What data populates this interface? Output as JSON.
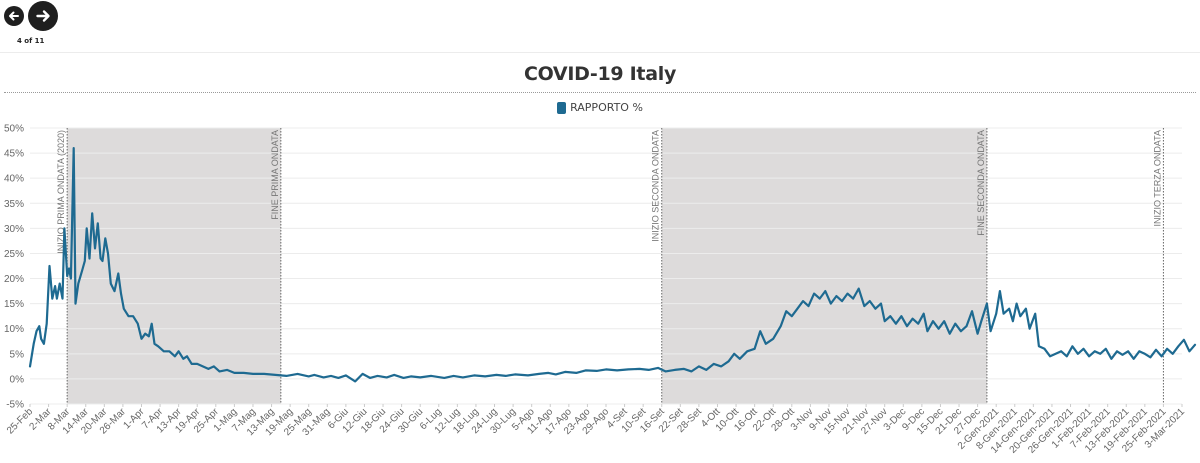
{
  "nav": {
    "prev_icon": "arrow-left-icon",
    "next_icon": "arrow-right-icon",
    "pager_text": "4 of 11"
  },
  "colors": {
    "line": "#1e6a91",
    "band": "#dddbdb",
    "grid": "#ececec",
    "text": "#666666"
  },
  "chart_data": {
    "type": "line",
    "title": "COVID-19 Italy",
    "legend": [
      "RAPPORTO %"
    ],
    "legend_position": "top-center",
    "ylim": [
      -5,
      50
    ],
    "yticks": [
      -5,
      0,
      5,
      10,
      15,
      20,
      25,
      30,
      35,
      40,
      45,
      50
    ],
    "y_tick_format": "{v}%",
    "grid": true,
    "x_tick_labels": [
      "25-Feb",
      "2-Mar",
      "8-Mar",
      "14-Mar",
      "20-Mar",
      "26-Mar",
      "1-Apr",
      "7-Apr",
      "13-Apr",
      "19-Apr",
      "25-Apr",
      "1-Mag",
      "7-Mag",
      "13-Mag",
      "19-Mag",
      "25-Mag",
      "31-Mag",
      "6-Giu",
      "12-Giu",
      "18-Giu",
      "24-Giu",
      "30-Giu",
      "6-Lug",
      "12-Lug",
      "18-Lug",
      "24-Lug",
      "30-Lug",
      "5-Ago",
      "11-Ago",
      "17-Ago",
      "23-Ago",
      "29-Ago",
      "4-Set",
      "10-Set",
      "16-Set",
      "22-Set",
      "28-Set",
      "4-Ott",
      "10-Ott",
      "16-Ott",
      "22-Ott",
      "28-Ott",
      "3-Nov",
      "9-Nov",
      "15-Nov",
      "21-Nov",
      "27-Nov",
      "3-Dec",
      "9-Dec",
      "15-Dec",
      "21-Dec",
      "27-Dec",
      "2-Gen-2021",
      "8-Gen-2021",
      "14-Gen-2021",
      "20-Gen-2021",
      "26-Gen-2021",
      "1-Feb-2021",
      "7-Feb-2021",
      "13-Feb-2021",
      "19-Feb-2021",
      "25-Feb-2021",
      "3-Mar-2021"
    ],
    "shaded_ranges": [
      {
        "from_tick": 2,
        "to_tick": 13.5
      },
      {
        "from_tick": 34,
        "to_tick": 51.5
      }
    ],
    "annotations": [
      {
        "at_tick": 2,
        "text": "INIZIO PRIMA ONDATA (2020)"
      },
      {
        "at_tick": 13.5,
        "text": "FINE PRIMA ONDATA"
      },
      {
        "at_tick": 34,
        "text": "INIZIO SECONDA ONDATA"
      },
      {
        "at_tick": 51.5,
        "text": "FINE SECONDA ONDATA"
      },
      {
        "at_tick": 61,
        "text": "INIZIO TERZA ONDATA"
      }
    ],
    "series": [
      {
        "name": "RAPPORTO %",
        "points": [
          [
            0,
            2.5
          ],
          [
            0.2,
            7
          ],
          [
            0.35,
            9.5
          ],
          [
            0.5,
            10.5
          ],
          [
            0.6,
            8
          ],
          [
            0.75,
            7
          ],
          [
            0.9,
            11
          ],
          [
            1.05,
            22.5
          ],
          [
            1.2,
            16
          ],
          [
            1.35,
            18.5
          ],
          [
            1.45,
            16
          ],
          [
            1.6,
            19
          ],
          [
            1.75,
            16
          ],
          [
            1.85,
            30
          ],
          [
            2.0,
            20.5
          ],
          [
            2.1,
            22
          ],
          [
            2.2,
            20
          ],
          [
            2.35,
            46
          ],
          [
            2.45,
            15
          ],
          [
            2.6,
            19
          ],
          [
            2.8,
            21.5
          ],
          [
            2.95,
            23.5
          ],
          [
            3.05,
            30
          ],
          [
            3.2,
            24
          ],
          [
            3.35,
            33
          ],
          [
            3.5,
            26
          ],
          [
            3.65,
            31
          ],
          [
            3.8,
            24
          ],
          [
            3.9,
            23.5
          ],
          [
            4.05,
            28
          ],
          [
            4.2,
            25
          ],
          [
            4.35,
            19
          ],
          [
            4.55,
            17.5
          ],
          [
            4.75,
            21
          ],
          [
            4.9,
            17
          ],
          [
            5.05,
            14
          ],
          [
            5.3,
            12.5
          ],
          [
            5.55,
            12.5
          ],
          [
            5.8,
            11
          ],
          [
            6.0,
            8
          ],
          [
            6.2,
            9
          ],
          [
            6.4,
            8.5
          ],
          [
            6.55,
            11
          ],
          [
            6.7,
            7
          ],
          [
            6.9,
            6.5
          ],
          [
            7.2,
            5.5
          ],
          [
            7.5,
            5.5
          ],
          [
            7.8,
            4.5
          ],
          [
            8.0,
            5.5
          ],
          [
            8.25,
            4
          ],
          [
            8.45,
            4.5
          ],
          [
            8.7,
            3
          ],
          [
            9.0,
            3
          ],
          [
            9.3,
            2.5
          ],
          [
            9.6,
            2
          ],
          [
            9.9,
            2.5
          ],
          [
            10.2,
            1.5
          ],
          [
            10.6,
            1.8
          ],
          [
            11.0,
            1.2
          ],
          [
            11.5,
            1.2
          ],
          [
            12.0,
            1.0
          ],
          [
            12.6,
            1.0
          ],
          [
            13.2,
            0.8
          ],
          [
            13.8,
            0.6
          ],
          [
            14.4,
            1.0
          ],
          [
            15.0,
            0.5
          ],
          [
            15.3,
            0.8
          ],
          [
            15.8,
            0.3
          ],
          [
            16.2,
            0.6
          ],
          [
            16.6,
            0.2
          ],
          [
            17.0,
            0.7
          ],
          [
            17.5,
            -0.5
          ],
          [
            17.9,
            1.0
          ],
          [
            18.3,
            0.2
          ],
          [
            18.7,
            0.6
          ],
          [
            19.2,
            0.3
          ],
          [
            19.6,
            0.8
          ],
          [
            20.1,
            0.2
          ],
          [
            20.5,
            0.5
          ],
          [
            21.0,
            0.3
          ],
          [
            21.6,
            0.6
          ],
          [
            22.3,
            0.2
          ],
          [
            22.8,
            0.6
          ],
          [
            23.3,
            0.3
          ],
          [
            23.9,
            0.7
          ],
          [
            24.5,
            0.5
          ],
          [
            25.1,
            0.8
          ],
          [
            25.6,
            0.6
          ],
          [
            26.1,
            0.9
          ],
          [
            26.8,
            0.7
          ],
          [
            27.4,
            1.0
          ],
          [
            27.9,
            1.2
          ],
          [
            28.3,
            0.9
          ],
          [
            28.8,
            1.4
          ],
          [
            29.4,
            1.2
          ],
          [
            29.9,
            1.7
          ],
          [
            30.5,
            1.6
          ],
          [
            31.0,
            1.9
          ],
          [
            31.6,
            1.7
          ],
          [
            32.2,
            1.9
          ],
          [
            32.8,
            2.0
          ],
          [
            33.3,
            1.8
          ],
          [
            33.8,
            2.2
          ],
          [
            34.2,
            1.5
          ],
          [
            34.7,
            1.8
          ],
          [
            35.2,
            2.0
          ],
          [
            35.6,
            1.5
          ],
          [
            36.0,
            2.5
          ],
          [
            36.4,
            1.8
          ],
          [
            36.8,
            3.0
          ],
          [
            37.2,
            2.5
          ],
          [
            37.6,
            3.5
          ],
          [
            37.9,
            5.0
          ],
          [
            38.2,
            4.0
          ],
          [
            38.6,
            5.5
          ],
          [
            39.0,
            6.0
          ],
          [
            39.3,
            9.5
          ],
          [
            39.6,
            7.0
          ],
          [
            40.0,
            8.0
          ],
          [
            40.4,
            10.5
          ],
          [
            40.7,
            13.5
          ],
          [
            41.0,
            12.5
          ],
          [
            41.3,
            14.0
          ],
          [
            41.6,
            15.5
          ],
          [
            41.9,
            14.5
          ],
          [
            42.2,
            17.0
          ],
          [
            42.5,
            16.0
          ],
          [
            42.8,
            17.5
          ],
          [
            43.1,
            15.0
          ],
          [
            43.4,
            16.5
          ],
          [
            43.7,
            15.5
          ],
          [
            44.0,
            17.0
          ],
          [
            44.3,
            16.0
          ],
          [
            44.6,
            18.0
          ],
          [
            44.9,
            14.5
          ],
          [
            45.2,
            15.5
          ],
          [
            45.5,
            14.0
          ],
          [
            45.8,
            15.0
          ],
          [
            46.0,
            11.5
          ],
          [
            46.3,
            12.5
          ],
          [
            46.6,
            11.0
          ],
          [
            46.9,
            12.5
          ],
          [
            47.2,
            10.5
          ],
          [
            47.5,
            12.0
          ],
          [
            47.8,
            11.0
          ],
          [
            48.1,
            13.0
          ],
          [
            48.3,
            9.5
          ],
          [
            48.6,
            11.5
          ],
          [
            48.9,
            10.0
          ],
          [
            49.2,
            11.5
          ],
          [
            49.5,
            9.0
          ],
          [
            49.8,
            11.0
          ],
          [
            50.1,
            9.5
          ],
          [
            50.4,
            10.5
          ],
          [
            50.7,
            13.5
          ],
          [
            51.0,
            9.0
          ],
          [
            51.2,
            11.5
          ],
          [
            51.5,
            15.0
          ],
          [
            51.7,
            9.5
          ],
          [
            52.0,
            13.0
          ],
          [
            52.2,
            17.5
          ],
          [
            52.4,
            13.0
          ],
          [
            52.7,
            14.0
          ],
          [
            52.9,
            11.5
          ],
          [
            53.1,
            15.0
          ],
          [
            53.3,
            12.5
          ],
          [
            53.6,
            14.0
          ],
          [
            53.8,
            10.0
          ],
          [
            54.1,
            13.0
          ],
          [
            54.3,
            6.5
          ],
          [
            54.6,
            6.0
          ],
          [
            54.9,
            4.5
          ],
          [
            55.2,
            5.0
          ],
          [
            55.5,
            5.5
          ],
          [
            55.8,
            4.5
          ],
          [
            56.1,
            6.5
          ],
          [
            56.4,
            5.0
          ],
          [
            56.7,
            6.0
          ],
          [
            57.0,
            4.5
          ],
          [
            57.3,
            5.5
          ],
          [
            57.6,
            5.0
          ],
          [
            57.9,
            6.0
          ],
          [
            58.2,
            4.0
          ],
          [
            58.5,
            5.5
          ],
          [
            58.8,
            4.8
          ],
          [
            59.1,
            5.5
          ],
          [
            59.4,
            4.0
          ],
          [
            59.7,
            5.5
          ],
          [
            60.0,
            5.0
          ],
          [
            60.3,
            4.3
          ],
          [
            60.6,
            5.8
          ],
          [
            60.9,
            4.5
          ],
          [
            61.2,
            6.0
          ],
          [
            61.5,
            5.0
          ],
          [
            61.8,
            6.5
          ],
          [
            62.1,
            7.8
          ],
          [
            62.4,
            5.5
          ],
          [
            62.7,
            6.8
          ]
        ]
      }
    ]
  }
}
